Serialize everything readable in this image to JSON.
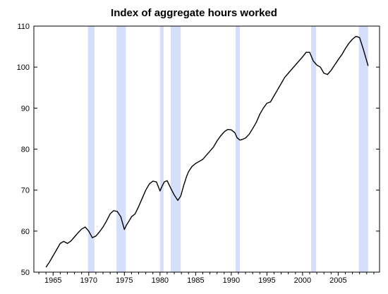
{
  "chart_data": {
    "type": "line",
    "title": "Index of aggregate hours worked",
    "xlabel": "",
    "ylabel": "",
    "xlim": [
      1962.3,
      2010.8
    ],
    "ylim": [
      50,
      110
    ],
    "x_ticks": [
      1965,
      1970,
      1975,
      1980,
      1985,
      1990,
      1995,
      2000,
      2005
    ],
    "x_tick_labels": [
      "1965",
      "1970",
      "1975",
      "1980",
      "1985",
      "1990",
      "1995",
      "2000",
      "2005"
    ],
    "y_ticks": [
      50,
      60,
      70,
      80,
      90,
      100,
      110
    ],
    "y_tick_labels": [
      "50",
      "60",
      "70",
      "80",
      "90",
      "100",
      "110"
    ],
    "grid": false,
    "legend": "none",
    "recession_shading_color": "#d5defb",
    "line_color": "#000000",
    "recessions": [
      {
        "start": 1969.9,
        "end": 1970.8
      },
      {
        "start": 1973.9,
        "end": 1975.2
      },
      {
        "start": 1980.0,
        "end": 1980.5
      },
      {
        "start": 1981.5,
        "end": 1982.9
      },
      {
        "start": 1990.6,
        "end": 1991.2
      },
      {
        "start": 2001.2,
        "end": 2001.9
      },
      {
        "start": 2007.9,
        "end": 2009.2
      }
    ],
    "series": [
      {
        "x": [
          1964.0,
          1964.5,
          1965.0,
          1965.5,
          1966.0,
          1966.5,
          1967.0,
          1967.5,
          1968.0,
          1968.5,
          1969.0,
          1969.5,
          1970.0,
          1970.5,
          1971.0,
          1971.5,
          1972.0,
          1972.5,
          1973.0,
          1973.5,
          1974.0,
          1974.5,
          1975.0,
          1975.3,
          1975.7,
          1976.0,
          1976.5,
          1977.0,
          1977.5,
          1978.0,
          1978.5,
          1979.0,
          1979.5,
          1980.0,
          1980.3,
          1980.6,
          1981.0,
          1981.5,
          1982.0,
          1982.5,
          1982.9,
          1983.3,
          1983.7,
          1984.0,
          1984.5,
          1985.0,
          1985.5,
          1986.0,
          1986.5,
          1987.0,
          1987.5,
          1988.0,
          1988.5,
          1989.0,
          1989.5,
          1990.0,
          1990.5,
          1990.8,
          1991.2,
          1991.6,
          1992.0,
          1992.5,
          1993.0,
          1993.5,
          1994.0,
          1994.5,
          1995.0,
          1995.5,
          1996.0,
          1996.5,
          1997.0,
          1997.5,
          1998.0,
          1998.5,
          1999.0,
          1999.5,
          2000.0,
          2000.5,
          2001.0,
          2001.5,
          2002.0,
          2002.5,
          2003.0,
          2003.5,
          2004.0,
          2004.5,
          2005.0,
          2005.5,
          2006.0,
          2006.5,
          2007.0,
          2007.5,
          2008.0,
          2008.5,
          2009.0,
          2009.2
        ],
        "y": [
          51.2,
          52.5,
          54.0,
          55.5,
          57.0,
          57.5,
          57.0,
          57.6,
          58.6,
          59.6,
          60.5,
          61.0,
          60.0,
          58.4,
          58.8,
          59.8,
          61.0,
          62.5,
          64.2,
          65.0,
          64.8,
          63.5,
          60.4,
          61.5,
          62.6,
          63.5,
          64.2,
          66.0,
          68.0,
          70.0,
          71.5,
          72.2,
          72.0,
          69.8,
          71.0,
          72.0,
          72.3,
          70.5,
          68.8,
          67.5,
          68.5,
          71.0,
          73.2,
          74.5,
          75.8,
          76.5,
          77.0,
          77.5,
          78.5,
          79.5,
          80.5,
          82.0,
          83.2,
          84.2,
          84.8,
          84.7,
          84.0,
          82.8,
          82.2,
          82.4,
          82.7,
          83.6,
          85.0,
          86.5,
          88.5,
          90.0,
          91.2,
          91.5,
          93.0,
          94.5,
          96.0,
          97.5,
          98.5,
          99.5,
          100.5,
          101.5,
          102.5,
          103.6,
          103.6,
          101.5,
          100.5,
          100.0,
          98.5,
          98.2,
          99.2,
          100.5,
          101.8,
          103.0,
          104.5,
          105.8,
          106.8,
          107.5,
          107.2,
          104.5,
          101.5,
          100.3
        ]
      }
    ]
  }
}
